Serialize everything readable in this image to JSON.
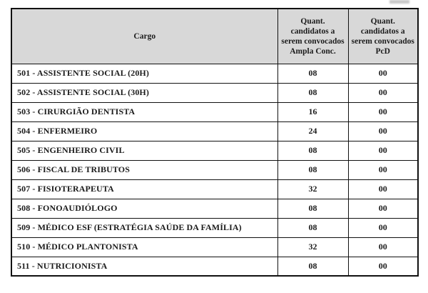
{
  "table": {
    "headers": {
      "cargo": "Cargo",
      "ampla": "Quant. candidatos a serem convocados Ampla Conc.",
      "pcd": "Quant. candidatos a serem convocados PcD"
    },
    "rows": [
      {
        "cargo": "501 - ASSISTENTE SOCIAL (20H)",
        "ampla": "08",
        "pcd": "00"
      },
      {
        "cargo": "502 - ASSISTENTE SOCIAL (30H)",
        "ampla": "08",
        "pcd": "00"
      },
      {
        "cargo": "503 - CIRURGIÃO DENTISTA",
        "ampla": "16",
        "pcd": "00"
      },
      {
        "cargo": "504 - ENFERMEIRO",
        "ampla": "24",
        "pcd": "00"
      },
      {
        "cargo": "505 - ENGENHEIRO CIVIL",
        "ampla": "08",
        "pcd": "00"
      },
      {
        "cargo": "506 - FISCAL DE TRIBUTOS",
        "ampla": "08",
        "pcd": "00"
      },
      {
        "cargo": "507 - FISIOTERAPEUTA",
        "ampla": "32",
        "pcd": "00"
      },
      {
        "cargo": "508 - FONOAUDIÓLOGO",
        "ampla": "08",
        "pcd": "00"
      },
      {
        "cargo": "509 - MÉDICO ESF (ESTRATÉGIA SAÚDE DA FAMÍLIA)",
        "ampla": "08",
        "pcd": "00"
      },
      {
        "cargo": "510 - MÉDICO PLANTONISTA",
        "ampla": "32",
        "pcd": "00"
      },
      {
        "cargo": "511 - NUTRICIONISTA",
        "ampla": "08",
        "pcd": "00"
      }
    ]
  },
  "colors": {
    "header_bg": "#d8d8d8",
    "border": "#111111",
    "text": "#1c1c1c",
    "page_bg": "#ffffff"
  }
}
